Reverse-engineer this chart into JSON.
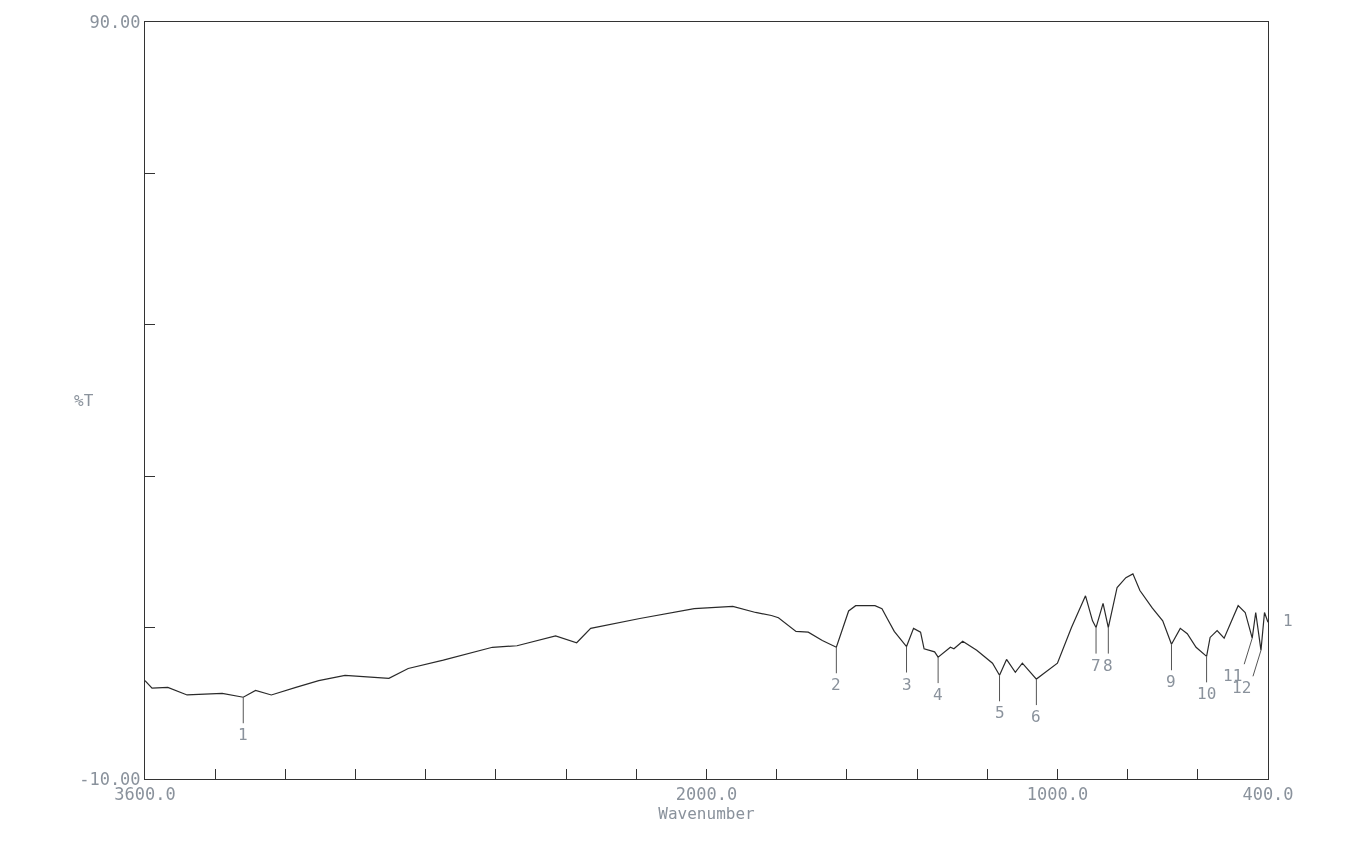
{
  "chart_data": {
    "type": "line",
    "xlabel": "Wavenumber",
    "ylabel": "%T",
    "xlim": [
      3600,
      400
    ],
    "ylim": [
      -10,
      90
    ],
    "xticks": [
      {
        "value": 3600,
        "label": "3600.0"
      },
      {
        "value": 3400,
        "label": null
      },
      {
        "value": 3200,
        "label": null
      },
      {
        "value": 3000,
        "label": null
      },
      {
        "value": 2800,
        "label": null
      },
      {
        "value": 2600,
        "label": null
      },
      {
        "value": 2400,
        "label": null
      },
      {
        "value": 2200,
        "label": null
      },
      {
        "value": 2000,
        "label": "2000.0"
      },
      {
        "value": 1800,
        "label": null
      },
      {
        "value": 1600,
        "label": null
      },
      {
        "value": 1400,
        "label": null
      },
      {
        "value": 1200,
        "label": null
      },
      {
        "value": 1000,
        "label": "1000.0"
      },
      {
        "value": 800,
        "label": null
      },
      {
        "value": 600,
        "label": null
      },
      {
        "value": 400,
        "label": "400.0"
      }
    ],
    "yticks": [
      {
        "value": -10,
        "label": "-10.00"
      },
      {
        "value": 10,
        "label": null
      },
      {
        "value": 30,
        "label": null
      },
      {
        "value": 50,
        "label": null
      },
      {
        "value": 70,
        "label": null
      },
      {
        "value": 90,
        "label": "90.00"
      }
    ],
    "marker": "none",
    "line_style": "solid",
    "series": [
      {
        "color": "#2a2a2a",
        "x": [
          3600,
          3580,
          3535,
          3480,
          3380,
          3320,
          3285,
          3240,
          3170,
          3105,
          3030,
          2905,
          2850,
          2750,
          2610,
          2540,
          2430,
          2370,
          2330,
          2190,
          2035,
          1925,
          1860,
          1815,
          1795,
          1745,
          1710,
          1670,
          1630,
          1595,
          1575,
          1520,
          1500,
          1485,
          1465,
          1430,
          1410,
          1390,
          1380,
          1350,
          1340,
          1305,
          1295,
          1270,
          1230,
          1185,
          1165,
          1145,
          1120,
          1100,
          1060,
          1040,
          1000,
          960,
          920,
          900,
          890,
          870,
          855,
          830,
          805,
          785,
          765,
          730,
          700,
          675,
          650,
          630,
          605,
          575,
          565,
          545,
          525,
          500,
          485,
          465,
          445,
          435,
          420,
          410,
          400
        ],
        "values": [
          3.0,
          2.0,
          2.1,
          1.1,
          1.3,
          0.8,
          1.7,
          1.1,
          2.1,
          3.0,
          3.7,
          3.3,
          4.6,
          5.7,
          7.4,
          7.6,
          8.9,
          8.0,
          9.9,
          11.2,
          12.5,
          12.8,
          12.0,
          11.6,
          11.3,
          9.5,
          9.4,
          8.3,
          7.4,
          12.2,
          12.9,
          12.9,
          12.5,
          11.2,
          9.5,
          7.5,
          9.9,
          9.4,
          7.2,
          6.8,
          6.1,
          7.4,
          7.2,
          8.2,
          7.0,
          5.3,
          3.7,
          5.8,
          4.1,
          5.3,
          3.2,
          3.9,
          5.3,
          10.0,
          14.2,
          10.9,
          10.0,
          13.2,
          10.0,
          15.3,
          16.6,
          17.1,
          14.9,
          12.6,
          10.9,
          7.8,
          9.9,
          9.2,
          7.4,
          6.2,
          8.7,
          9.6,
          8.6,
          11.3,
          12.9,
          12.0,
          8.6,
          12.0,
          7.0,
          12.0,
          10.7
        ]
      }
    ],
    "annotations": [
      {
        "text": "1",
        "x": 3320,
        "y": 0.8
      },
      {
        "text": "2",
        "x": 1630,
        "y": 7.4
      },
      {
        "text": "3",
        "x": 1430,
        "y": 7.5
      },
      {
        "text": "4",
        "x": 1340,
        "y": 6.1
      },
      {
        "text": "5",
        "x": 1165,
        "y": 3.7
      },
      {
        "text": "6",
        "x": 1060,
        "y": 3.2
      },
      {
        "text": "7",
        "x": 890,
        "y": 10.0
      },
      {
        "text": "8",
        "x": 855,
        "y": 10.0
      },
      {
        "text": "9",
        "x": 675,
        "y": 7.8
      },
      {
        "text": "10",
        "x": 575,
        "y": 6.2
      },
      {
        "text": "11",
        "x": 445,
        "y": 8.6
      },
      {
        "text": "12",
        "x": 420,
        "y": 7.0
      },
      "1"
    ]
  }
}
